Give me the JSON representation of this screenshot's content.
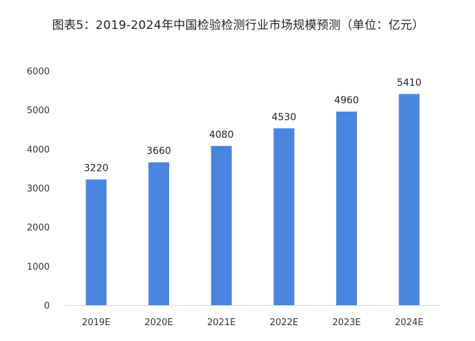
{
  "chart_data": {
    "type": "bar",
    "title": "图表5：2019-2024年中国检验检测行业市场规模预测（单位：亿元）",
    "categories": [
      "2019E",
      "2020E",
      "2021E",
      "2022E",
      "2023E",
      "2024E"
    ],
    "values": [
      3220,
      3660,
      4080,
      4530,
      4960,
      5410
    ],
    "xlabel": "",
    "ylabel": "",
    "ylim": [
      0,
      6000
    ],
    "yticks": [
      0,
      1000,
      2000,
      3000,
      4000,
      5000,
      6000
    ],
    "grid": false,
    "legend": "none",
    "bar_color": "#4a86e0",
    "axis_color": "#d9d9d9"
  }
}
